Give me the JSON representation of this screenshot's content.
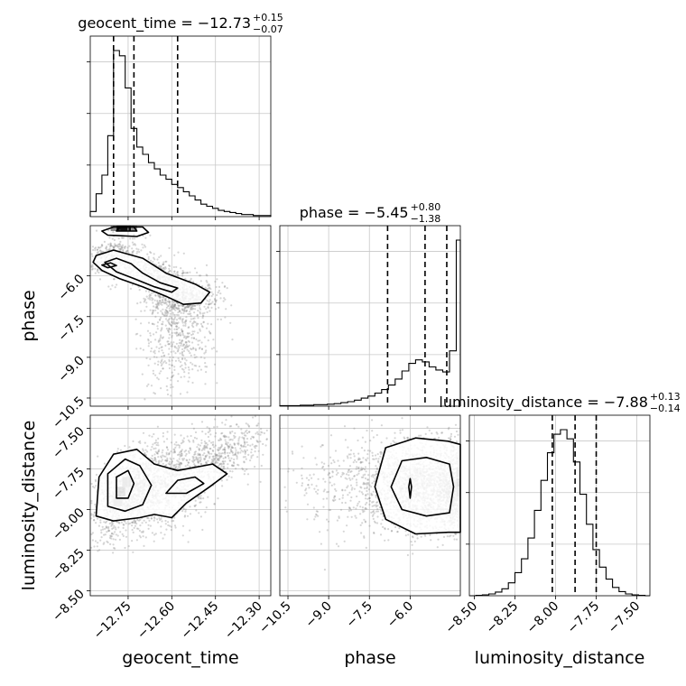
{
  "chart_data": {
    "type": "corner",
    "parameters": [
      "geocent_time",
      "phase",
      "luminosity_distance"
    ],
    "ranges": {
      "geocent_time": [
        -12.88,
        -12.26
      ],
      "phase": [
        -10.8,
        -4.15
      ],
      "luminosity_distance": [
        -8.53,
        -7.42
      ]
    },
    "ticks": {
      "geocent_time": [
        -12.75,
        -12.6,
        -12.45,
        -12.3
      ],
      "phase": [
        -10.5,
        -9.0,
        -7.5,
        -6.0
      ],
      "luminosity_distance": [
        -8.5,
        -8.25,
        -8.0,
        -7.75,
        -7.5
      ]
    },
    "tick_labels": {
      "geocent_time": [
        "−12.75",
        "−12.60",
        "−12.45",
        "−12.30"
      ],
      "phase": [
        "−10.5",
        "−9.0",
        "−7.5",
        "−6.0"
      ],
      "luminosity_distance": [
        "−8.50",
        "−8.25",
        "−8.00",
        "−7.75",
        "−7.50"
      ]
    },
    "axis_labels": {
      "geocent_time": "geocent_time",
      "phase": "phase",
      "luminosity_distance": "luminosity_distance"
    },
    "titles": [
      {
        "parameter": "geocent_time",
        "prefix": "geocent_time = −12.73",
        "upper": "+0.15",
        "lower": "−0.07"
      },
      {
        "parameter": "phase",
        "prefix": "phase = −5.45",
        "upper": "+0.80",
        "lower": "−1.38"
      },
      {
        "parameter": "luminosity_distance",
        "prefix": "luminosity_distance = −7.88",
        "upper": "+0.13",
        "lower": "−0.14"
      }
    ],
    "quantiles": {
      "geocent_time": [
        -12.8,
        -12.73,
        -12.58
      ],
      "phase": [
        -6.83,
        -5.45,
        -4.65
      ],
      "luminosity_distance": [
        -8.02,
        -7.88,
        -7.75
      ]
    },
    "histograms": {
      "geocent_time": {
        "edges": [
          -12.88,
          -12.86,
          -12.84,
          -12.82,
          -12.8,
          -12.78,
          -12.76,
          -12.74,
          -12.72,
          -12.7,
          -12.68,
          -12.66,
          -12.64,
          -12.62,
          -12.6,
          -12.58,
          -12.56,
          -12.54,
          -12.52,
          -12.5,
          -12.48,
          -12.46,
          -12.44,
          -12.42,
          -12.4,
          -12.38,
          -12.36,
          -12.34,
          -12.32,
          -12.3,
          -12.28,
          -12.26
        ],
        "counts": [
          5,
          22,
          40,
          78,
          160,
          155,
          124,
          85,
          67,
          60,
          52,
          46,
          40,
          36,
          31,
          28,
          24,
          20,
          16,
          12,
          10,
          8,
          6,
          5,
          4,
          3,
          2,
          2,
          1,
          1,
          1
        ]
      },
      "phase": {
        "edges": [
          -10.8,
          -10.55,
          -10.3,
          -10.05,
          -9.8,
          -9.55,
          -9.3,
          -9.05,
          -8.8,
          -8.55,
          -8.3,
          -8.05,
          -7.8,
          -7.55,
          -7.3,
          -7.05,
          -6.8,
          -6.55,
          -6.3,
          -6.05,
          -5.8,
          -5.55,
          -5.3,
          -5.05,
          -4.8,
          -4.55,
          -4.3,
          -4.15
        ],
        "counts": [
          1,
          1,
          1,
          2,
          2,
          3,
          3,
          4,
          5,
          7,
          9,
          12,
          16,
          20,
          26,
          33,
          42,
          54,
          70,
          85,
          92,
          88,
          78,
          72,
          68,
          110,
          330
        ]
      },
      "luminosity_distance": {
        "edges": [
          -8.53,
          -8.49,
          -8.45,
          -8.41,
          -8.37,
          -8.33,
          -8.29,
          -8.25,
          -8.21,
          -8.17,
          -8.13,
          -8.09,
          -8.05,
          -8.01,
          -7.97,
          -7.93,
          -7.89,
          -7.85,
          -7.81,
          -7.77,
          -7.73,
          -7.69,
          -7.65,
          -7.61,
          -7.57,
          -7.53,
          -7.49,
          -7.45,
          -7.42
        ],
        "counts": [
          0,
          1,
          2,
          4,
          8,
          15,
          28,
          50,
          80,
          125,
          185,
          250,
          310,
          350,
          360,
          340,
          290,
          220,
          155,
          100,
          62,
          36,
          18,
          9,
          4,
          2,
          1,
          0
        ]
      }
    },
    "density_modes": {
      "phase_vs_geocent_time": [
        [
          -12.76,
          -4.25
        ],
        [
          -12.83,
          -5.9
        ],
        [
          -12.55,
          -6.8
        ]
      ],
      "luminosity_distance_vs_geocent_time": [
        [
          -12.76,
          -7.86
        ],
        [
          -12.72,
          -7.82
        ],
        [
          -12.54,
          -7.87
        ]
      ],
      "luminosity_distance_vs_phase": [
        [
          -6.0,
          -7.85
        ],
        [
          -4.25,
          -7.84
        ]
      ]
    },
    "grid": true
  }
}
